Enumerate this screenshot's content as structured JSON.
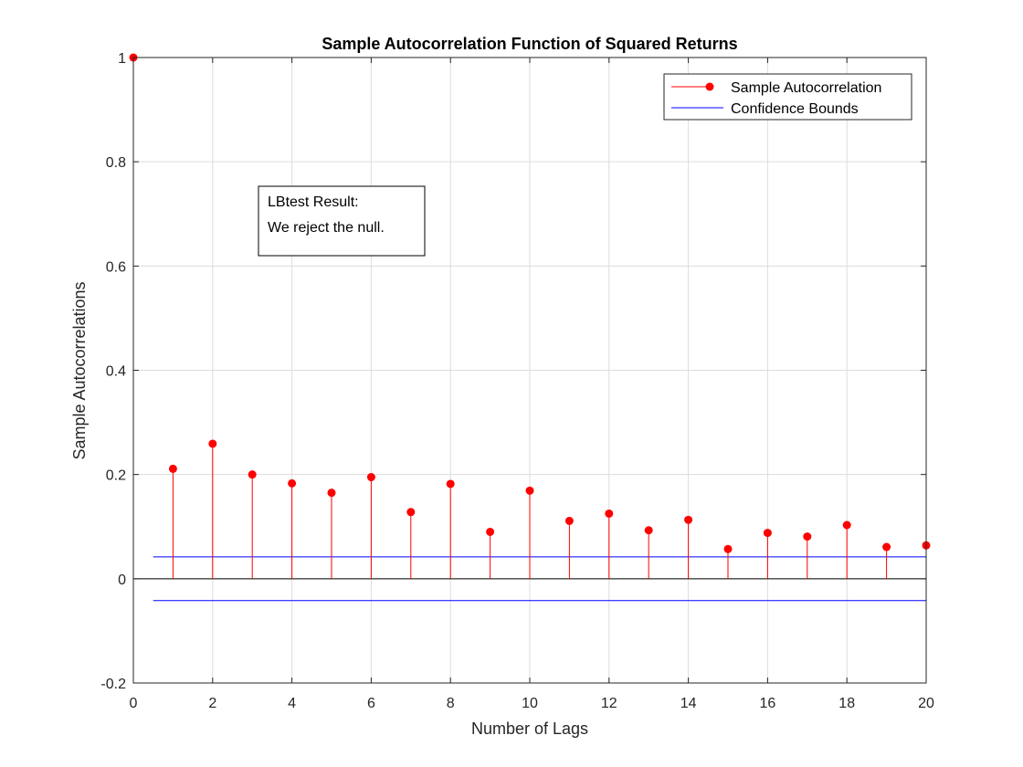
{
  "chart_data": {
    "type": "stem",
    "title": "Sample Autocorrelation Function of Squared Returns",
    "xlabel": "Number of Lags",
    "ylabel": "Sample Autocorrelations",
    "xlim": [
      0,
      20
    ],
    "ylim": [
      -0.2,
      1
    ],
    "xticks": [
      0,
      2,
      4,
      6,
      8,
      10,
      12,
      14,
      16,
      18,
      20
    ],
    "yticks": [
      -0.2,
      0,
      0.2,
      0.4,
      0.6,
      0.8,
      1
    ],
    "grid": true,
    "legend_position": "top-right",
    "series": [
      {
        "name": "Sample Autocorrelation",
        "color": "#ff0000",
        "x": [
          0,
          1,
          2,
          3,
          4,
          5,
          6,
          7,
          8,
          9,
          10,
          11,
          12,
          13,
          14,
          15,
          16,
          17,
          18,
          19,
          20
        ],
        "values": [
          1.0,
          0.211,
          0.259,
          0.2,
          0.183,
          0.165,
          0.195,
          0.128,
          0.182,
          0.09,
          0.169,
          0.111,
          0.125,
          0.093,
          0.113,
          0.057,
          0.088,
          0.081,
          0.103,
          0.061,
          0.064
        ]
      },
      {
        "name": "Confidence Bounds",
        "color": "#0000ff",
        "upper": 0.042,
        "lower": -0.042,
        "x_range": [
          0.5,
          20
        ]
      }
    ],
    "annotation": {
      "line1": "LBtest Result:",
      "line2": "We reject the null."
    }
  }
}
